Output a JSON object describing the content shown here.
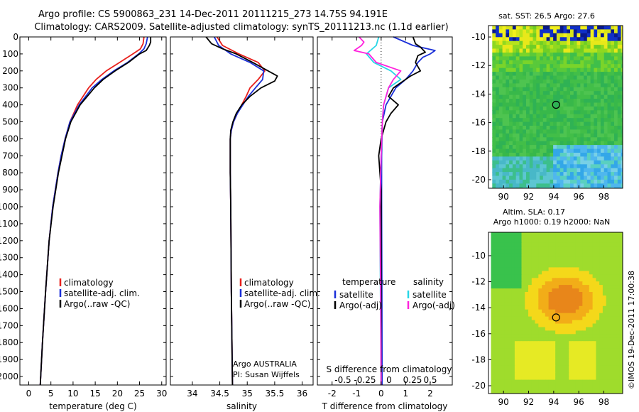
{
  "header": {
    "title_line1": "Argo profile: CS 5900863_231 14-Dec-2011 20111215_273 14.75S 94.191E",
    "title_line2": "Climatology: CARS2009. Satellite-adjusted climatology: synTS_20111213.nc (1.1d earlier)"
  },
  "credit": "©IMOS 19-Dec-2011 17:00:38",
  "argo_note": {
    "line1": "Argo AUSTRALIA",
    "line2": "PI: Susan Wijffels"
  },
  "colors": {
    "climatology": "#e8201c",
    "satellite": "#1a2fd8",
    "argo": "#000000",
    "sat_salinity": "#27d6e6",
    "argo_salinity": "#ff22dd"
  },
  "chart_data": [
    {
      "type": "line",
      "xlabel": "temperature (deg C)",
      "xlim": [
        -2,
        31
      ],
      "xticks": [
        "0",
        "5",
        "10",
        "15",
        "20",
        "25",
        "30"
      ],
      "ylim": [
        0,
        2050
      ],
      "yticks": [
        "0",
        "100",
        "200",
        "300",
        "400",
        "500",
        "600",
        "700",
        "800",
        "900",
        "1000",
        "1100",
        "1200",
        "1300",
        "1400",
        "1500",
        "1600",
        "1700",
        "1800",
        "1900",
        "2000"
      ],
      "legend": [
        "climatology",
        "satellite-adj. clim.",
        "Argo(..raw -QC)"
      ],
      "series": [
        {
          "name": "climatology",
          "depth": [
            0,
            40,
            70,
            100,
            150,
            200,
            250,
            300,
            400,
            500,
            600,
            700,
            800,
            1000,
            1200,
            1500,
            1800,
            2050
          ],
          "values": [
            26,
            25.8,
            25.2,
            23.5,
            20.5,
            17.5,
            15.2,
            13.5,
            11,
            9.3,
            8.2,
            7.3,
            6.6,
            5.4,
            4.6,
            3.8,
            3.1,
            2.6
          ]
        },
        {
          "name": "satellite-adj. clim.",
          "depth": [
            0,
            40,
            70,
            100,
            150,
            200,
            250,
            300,
            400,
            500,
            600,
            700,
            800,
            1000,
            1200,
            1500,
            1800,
            2050
          ],
          "values": [
            26.8,
            26.5,
            26,
            24.8,
            22.3,
            19.2,
            16.5,
            14.3,
            11.4,
            9.3,
            8.2,
            7.3,
            6.6,
            5.4,
            4.6,
            3.8,
            3.1,
            2.6
          ]
        },
        {
          "name": "Argo(..raw -QC)",
          "depth": [
            0,
            30,
            50,
            80,
            100,
            150,
            200,
            250,
            300,
            400,
            500,
            600,
            800,
            1000,
            1200,
            1500,
            1800,
            2050
          ],
          "values": [
            27.5,
            27.5,
            27.2,
            26.5,
            25,
            22.5,
            19.5,
            16.8,
            14.8,
            11.6,
            9.5,
            8.3,
            6.7,
            5.5,
            4.6,
            3.8,
            3.1,
            2.6
          ]
        }
      ]
    },
    {
      "type": "line",
      "xlabel": "salinity",
      "xlim": [
        33.6,
        36.2
      ],
      "xticks": [
        "34",
        "34.5",
        "35",
        "35.5",
        "36"
      ],
      "ylim": [
        0,
        2050
      ],
      "legend": [
        "climatology",
        "satellite-adj. clim.",
        "Argo(..raw -QC)"
      ],
      "series": [
        {
          "name": "climatology",
          "depth": [
            0,
            50,
            100,
            150,
            200,
            250,
            300,
            350,
            400,
            450,
            500,
            550,
            600,
            800,
            1000,
            1500,
            2050
          ],
          "values": [
            34.45,
            34.55,
            34.85,
            35.2,
            35.32,
            35.2,
            35.05,
            34.98,
            34.9,
            34.82,
            34.75,
            34.71,
            34.69,
            34.69,
            34.7,
            34.71,
            34.73
          ]
        },
        {
          "name": "satellite-adj. clim.",
          "depth": [
            0,
            50,
            100,
            150,
            200,
            250,
            300,
            350,
            400,
            450,
            500,
            550,
            600,
            800,
            1000,
            1500,
            2050
          ],
          "values": [
            34.4,
            34.48,
            34.7,
            35.05,
            35.3,
            35.28,
            35.15,
            35.02,
            34.92,
            34.82,
            34.75,
            34.71,
            34.69,
            34.69,
            34.7,
            34.71,
            34.73
          ]
        },
        {
          "name": "Argo(..raw -QC)",
          "depth": [
            0,
            40,
            70,
            100,
            150,
            200,
            230,
            260,
            300,
            350,
            400,
            450,
            500,
            550,
            600,
            800,
            1000,
            1500,
            2050
          ],
          "values": [
            34.25,
            34.35,
            34.55,
            34.8,
            35.1,
            35.38,
            35.55,
            35.5,
            35.25,
            35.05,
            34.9,
            34.8,
            34.74,
            34.7,
            34.69,
            34.69,
            34.7,
            34.71,
            34.73
          ]
        }
      ]
    },
    {
      "type": "line",
      "xlabel": "T difference from climatology",
      "xlabel_top": "S difference from climatology",
      "xlim": [
        -2.6,
        2.9
      ],
      "xticks": [
        "-2",
        "-1",
        "0",
        "1",
        "2"
      ],
      "xticks_top": [
        "-0.5",
        "-0.25",
        "0",
        "0.25",
        "0.5"
      ],
      "ylim": [
        0,
        2050
      ],
      "legend_headers": [
        "temperature",
        "salinity"
      ],
      "legend": [
        "satellite",
        "Argo(-adj)",
        "satellite",
        "Argo(-adj)"
      ],
      "series": [
        {
          "name": "satellite",
          "depth": [
            0,
            50,
            80,
            100,
            120,
            150,
            200,
            250,
            300,
            400,
            500,
            700,
            1000,
            1500,
            2050
          ],
          "values": [
            0.5,
            1.3,
            2.2,
            2.0,
            1.7,
            1.5,
            1.3,
            1.0,
            0.6,
            0.2,
            0.05,
            0.02,
            0.02,
            0.03,
            0.04
          ]
        },
        {
          "name": "Argo(-adj)",
          "depth": [
            0,
            40,
            60,
            90,
            110,
            150,
            200,
            230,
            260,
            300,
            350,
            400,
            450,
            500,
            600,
            700,
            900,
            1200,
            1500,
            2050
          ],
          "values": [
            1.3,
            1.4,
            1.6,
            1.8,
            1.5,
            1.4,
            1.6,
            1.2,
            0.9,
            0.5,
            0.3,
            0.7,
            0.4,
            0.2,
            0.0,
            -0.1,
            0.0,
            0.0,
            0.0,
            0.0
          ]
        },
        {
          "name": "satellite",
          "depth": [
            0,
            50,
            100,
            150,
            200,
            250,
            300,
            400,
            500,
            700,
            1000,
            1500,
            2050
          ],
          "values": [
            -0.1,
            -0.2,
            -0.6,
            -0.3,
            0.4,
            0.8,
            0.3,
            0.1,
            0.05,
            0.0,
            -0.05,
            -0.03,
            0.0
          ]
        },
        {
          "name": "Argo(-adj)",
          "depth": [
            0,
            30,
            50,
            80,
            100,
            150,
            200,
            250,
            300,
            400,
            500,
            700,
            1000,
            1500,
            2050
          ],
          "values": [
            -0.9,
            -0.7,
            -0.8,
            -1.1,
            -0.5,
            -0.2,
            0.8,
            0.5,
            0.3,
            0.1,
            0.05,
            0.0,
            -0.05,
            -0.02,
            0.0
          ]
        }
      ]
    }
  ],
  "maps": [
    {
      "title": "sat. SST: 26.5 Argo: 27.6",
      "xticks": [
        "90",
        "92",
        "94",
        "96",
        "98"
      ],
      "yticks": [
        "-10",
        "-12",
        "-14",
        "-16",
        "-18",
        "-20"
      ],
      "xlim": [
        88.8,
        99.5
      ],
      "ylim": [
        -20.6,
        -9.2
      ],
      "argo_position": {
        "lon": 94.19,
        "lat": -14.75
      }
    },
    {
      "title_line1": "Altim. SLA: 0.17",
      "title_line2": "Argo h1000: 0.19 h2000: NaN",
      "xticks": [
        "90",
        "92",
        "94",
        "96",
        "98"
      ],
      "yticks": [
        "-10",
        "-12",
        "-14",
        "-16",
        "-18",
        "-20"
      ],
      "xlim": [
        88.8,
        99.5
      ],
      "ylim": [
        -20.6,
        -8.2
      ],
      "argo_position": {
        "lon": 94.19,
        "lat": -14.75
      }
    }
  ]
}
